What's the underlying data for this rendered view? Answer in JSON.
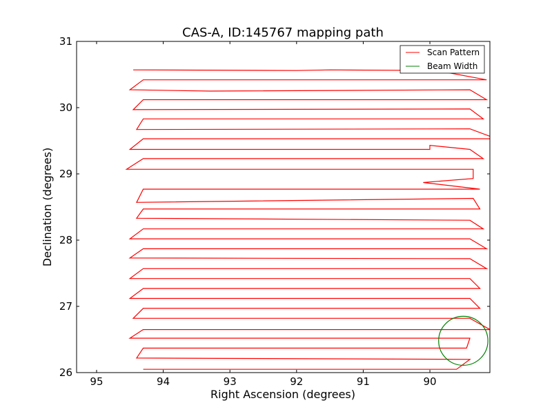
{
  "chart_data": {
    "type": "line",
    "title": "CAS-A, ID:145767 mapping path",
    "xlabel": "Right Ascension (degrees)",
    "ylabel": "Declination (degrees)",
    "xlim": [
      95.3,
      89.1
    ],
    "ylim": [
      26,
      31
    ],
    "x_ticks": [
      95,
      94,
      93,
      92,
      91,
      90
    ],
    "x_tick_labels": [
      "95",
      "94",
      "93",
      "92",
      "91",
      "90"
    ],
    "y_ticks": [
      26,
      27,
      28,
      29,
      30,
      31
    ],
    "y_tick_labels": [
      "26",
      "27",
      "28",
      "29",
      "30",
      "31"
    ],
    "grid": false,
    "legend_position": "top-right",
    "series": [
      {
        "name": "Scan Pattern",
        "color": "#ff0000",
        "path": [
          [
            94.45,
            30.57
          ],
          [
            92.0,
            30.56
          ],
          [
            91.5,
            30.57
          ],
          [
            89.9,
            30.56
          ],
          [
            89.15,
            30.42
          ],
          [
            94.3,
            30.42
          ],
          [
            94.5,
            30.27
          ],
          [
            93.3,
            30.25
          ],
          [
            89.4,
            30.27
          ],
          [
            89.15,
            30.12
          ],
          [
            94.3,
            30.12
          ],
          [
            94.45,
            29.97
          ],
          [
            89.4,
            29.98
          ],
          [
            89.2,
            29.83
          ],
          [
            94.3,
            29.83
          ],
          [
            94.4,
            29.67
          ],
          [
            89.4,
            29.68
          ],
          [
            89.0,
            29.53
          ],
          [
            94.3,
            29.53
          ],
          [
            94.5,
            29.37
          ],
          [
            90.0,
            29.37
          ],
          [
            90.0,
            29.43
          ],
          [
            89.4,
            29.37
          ],
          [
            89.2,
            29.23
          ],
          [
            94.3,
            29.23
          ],
          [
            94.55,
            29.07
          ],
          [
            89.35,
            29.07
          ],
          [
            89.35,
            28.93
          ],
          [
            90.1,
            28.87
          ],
          [
            89.25,
            28.77
          ],
          [
            94.3,
            28.77
          ],
          [
            94.4,
            28.57
          ],
          [
            89.35,
            28.63
          ],
          [
            89.25,
            28.47
          ],
          [
            94.3,
            28.47
          ],
          [
            94.4,
            28.33
          ],
          [
            89.4,
            28.3
          ],
          [
            89.2,
            28.17
          ],
          [
            94.3,
            28.17
          ],
          [
            94.5,
            28.02
          ],
          [
            89.4,
            28.02
          ],
          [
            89.15,
            27.87
          ],
          [
            94.3,
            27.87
          ],
          [
            94.5,
            27.73
          ],
          [
            89.4,
            27.72
          ],
          [
            89.15,
            27.57
          ],
          [
            94.3,
            27.57
          ],
          [
            94.5,
            27.42
          ],
          [
            89.4,
            27.42
          ],
          [
            89.25,
            27.27
          ],
          [
            94.3,
            27.27
          ],
          [
            94.5,
            27.12
          ],
          [
            89.4,
            27.12
          ],
          [
            89.25,
            26.97
          ],
          [
            94.3,
            26.97
          ],
          [
            94.45,
            26.82
          ],
          [
            89.4,
            26.82
          ],
          [
            89.1,
            26.65
          ],
          [
            94.3,
            26.65
          ],
          [
            94.5,
            26.52
          ],
          [
            89.4,
            26.52
          ],
          [
            89.45,
            26.37
          ],
          [
            94.3,
            26.37
          ],
          [
            94.4,
            26.22
          ],
          [
            89.4,
            26.2
          ],
          [
            89.6,
            26.05
          ],
          [
            94.3,
            26.05
          ]
        ]
      },
      {
        "name": "Beam Width",
        "color": "#008000",
        "shape": "circle",
        "center": [
          89.5,
          26.48
        ],
        "radius": 0.37
      }
    ]
  }
}
